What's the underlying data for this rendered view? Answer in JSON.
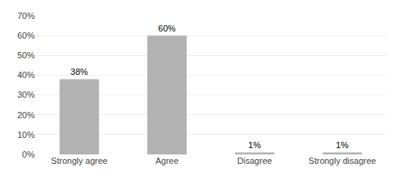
{
  "chart_data": {
    "type": "bar",
    "categories": [
      "Strongly agree",
      "Agree",
      "Disagree",
      "Strongly disagree"
    ],
    "values": [
      38,
      60,
      1,
      1
    ],
    "value_labels": [
      "38%",
      "60%",
      "1%",
      "1%"
    ],
    "data_labels": true,
    "color": "#b2b2b2",
    "ylim": [
      0,
      70
    ],
    "yticks": [
      {
        "value": 0,
        "label": "0%"
      },
      {
        "value": 10,
        "label": "10%"
      },
      {
        "value": 20,
        "label": "20%"
      },
      {
        "value": 30,
        "label": "30%"
      },
      {
        "value": 40,
        "label": "40%"
      },
      {
        "value": 50,
        "label": "50%"
      },
      {
        "value": 60,
        "label": "60%"
      },
      {
        "value": 70,
        "label": "70%"
      }
    ],
    "grid": true
  }
}
